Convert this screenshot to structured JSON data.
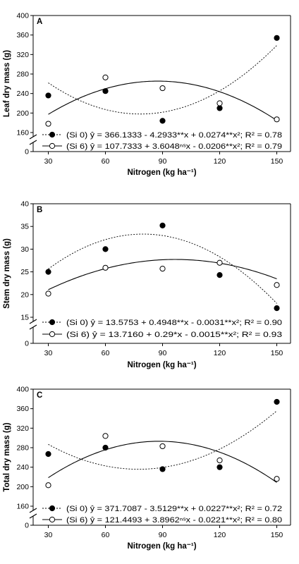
{
  "chart_data": [
    {
      "type": "scatter",
      "panel_label": "A",
      "ylabel": "Leaf dry mass (g)",
      "xlabel": "Nitrogen (kg ha⁻¹)",
      "x": [
        30,
        60,
        90,
        120,
        150
      ],
      "xticks": [
        "30",
        "60",
        "90",
        "120",
        "150"
      ],
      "xlim": [
        25,
        155
      ],
      "ylim": [
        160,
        400
      ],
      "yticks": [
        160,
        200,
        240,
        280,
        320,
        360,
        400
      ],
      "yaxis_break": "0",
      "series": [
        {
          "legend_text": "(Si 0) ŷ = 366.1333 - 4.2933**x + 0.0274**x²; R² = 0.78",
          "marker": "filled",
          "line": "dotted",
          "values": [
            236,
            245,
            184,
            210,
            354
          ],
          "fit": {
            "a": 366.1333,
            "b": -4.2933,
            "c": 0.0274
          }
        },
        {
          "legend_text": "(Si 6) ŷ = 107.7333 + 3.6048ⁿˢx - 0.0206**x²; R² = 0.79",
          "marker": "open",
          "line": "solid",
          "values": [
            178,
            273,
            251,
            220,
            187
          ],
          "fit": {
            "a": 107.7333,
            "b": 3.6048,
            "c": -0.0206
          }
        }
      ]
    },
    {
      "type": "scatter",
      "panel_label": "B",
      "ylabel": "Stem dry mass (g)",
      "xlabel": "Nitrogen (kg ha⁻¹)",
      "x": [
        30,
        60,
        90,
        120,
        150
      ],
      "xticks": [
        "30",
        "60",
        "90",
        "120",
        "150"
      ],
      "xlim": [
        25,
        155
      ],
      "ylim": [
        15,
        40
      ],
      "yticks": [
        15,
        20,
        25,
        30,
        35,
        40
      ],
      "yaxis_break": "0",
      "series": [
        {
          "legend_text": "(Si 0) ŷ = 13.5753 + 0.4948**x - 0.0031**x²; R² = 0.90",
          "marker": "filled",
          "line": "dotted",
          "values": [
            25.0,
            30.0,
            35.2,
            24.3,
            17.0
          ],
          "fit": {
            "a": 13.5753,
            "b": 0.4948,
            "c": -0.0031
          }
        },
        {
          "legend_text": "(Si 6) ŷ = 13.7160 + 0.29*x - 0.0015**x²; R² = 0.93",
          "marker": "open",
          "line": "solid",
          "values": [
            20.2,
            25.9,
            25.7,
            27.0,
            22.1
          ],
          "fit": {
            "a": 13.716,
            "b": 0.29,
            "c": -0.0015
          }
        }
      ]
    },
    {
      "type": "scatter",
      "panel_label": "C",
      "ylabel": "Total dry mass (g)",
      "xlabel": "Nitrogen (kg ha⁻¹)",
      "x": [
        30,
        60,
        90,
        120,
        150
      ],
      "xticks": [
        "30",
        "60",
        "90",
        "120",
        "150"
      ],
      "xlim": [
        25,
        155
      ],
      "ylim": [
        160,
        400
      ],
      "yticks": [
        160,
        200,
        240,
        280,
        320,
        360,
        400
      ],
      "yaxis_break": "0",
      "series": [
        {
          "legend_text": "(Si 0) ŷ = 371.7087 - 3.5129**x + 0.0227**x²; R² = 0.72",
          "marker": "filled",
          "line": "dotted",
          "values": [
            267,
            280,
            236,
            240,
            374
          ],
          "fit": {
            "a": 371.7087,
            "b": -3.5129,
            "c": 0.0227
          }
        },
        {
          "legend_text": "(Si 6) ŷ = 121.4493 + 3.8962ⁿˢx - 0.0221**x²; R² = 0.80",
          "marker": "open",
          "line": "solid",
          "values": [
            203,
            304,
            283,
            254,
            216
          ],
          "fit": {
            "a": 121.4493,
            "b": 3.8962,
            "c": -0.0221
          }
        }
      ]
    }
  ]
}
